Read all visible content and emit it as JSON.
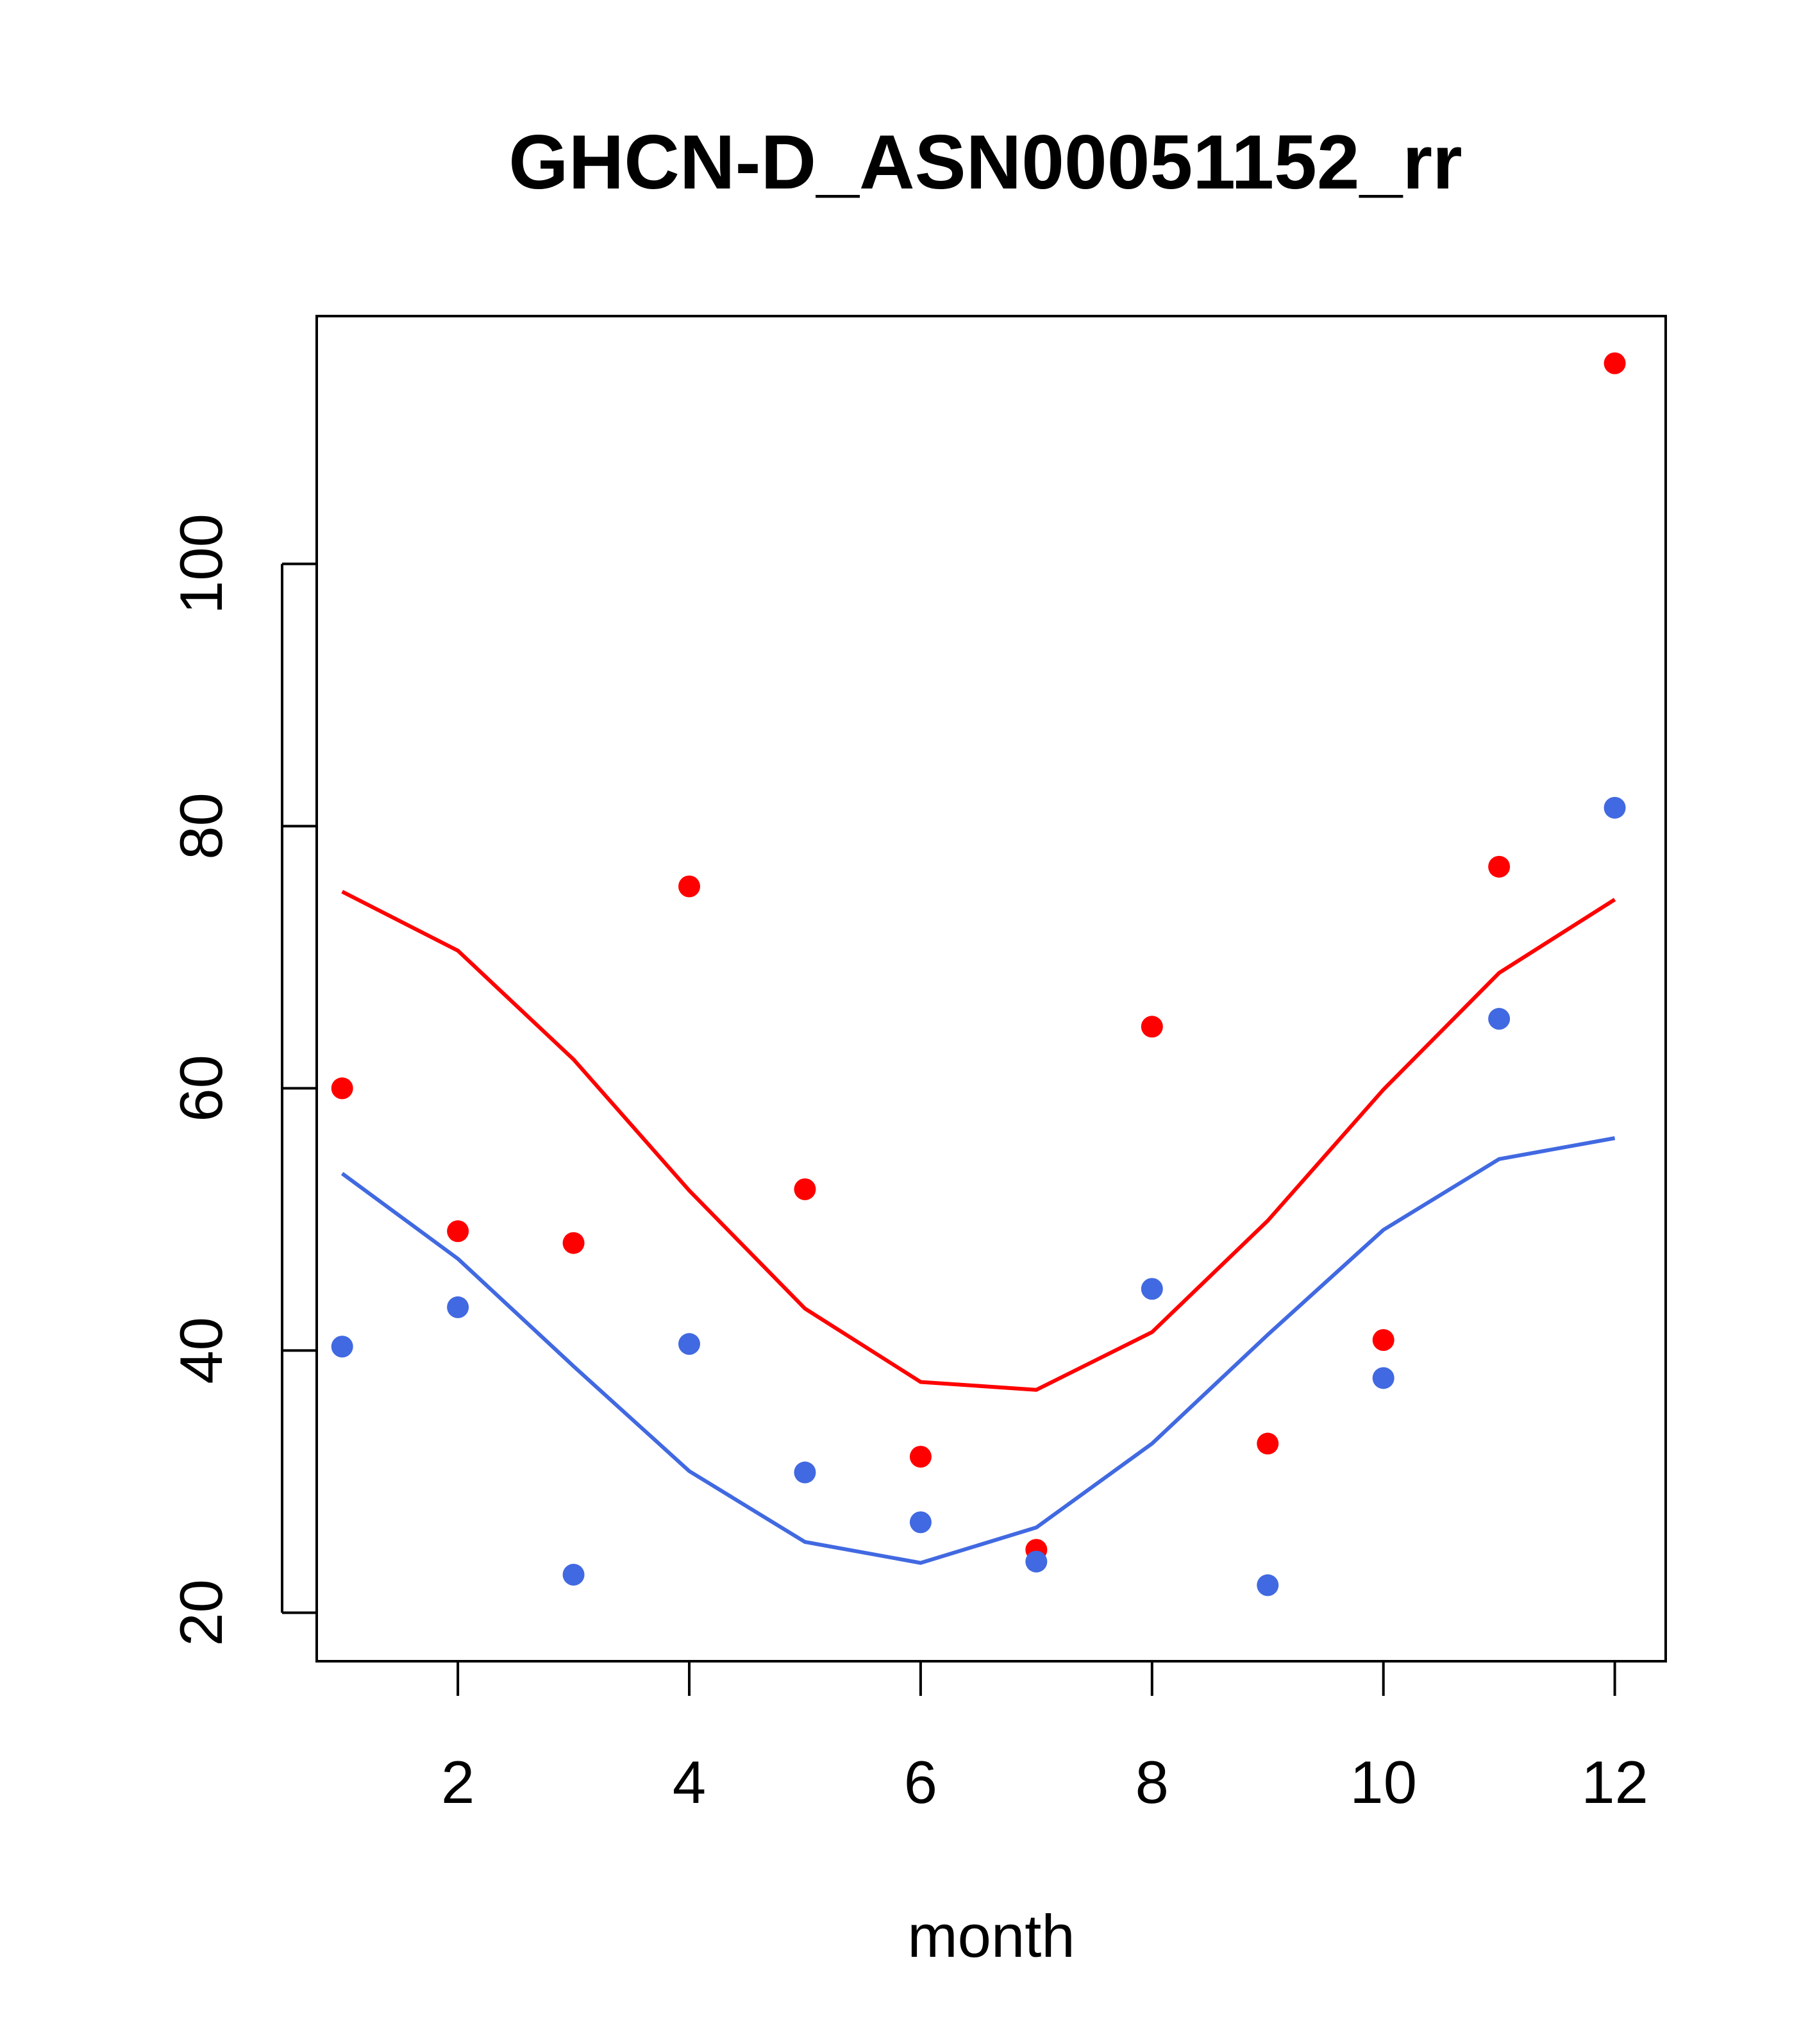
{
  "chart_data": {
    "type": "line",
    "title": "GHCN-D_ASN00051152_rr",
    "xlabel": "month",
    "ylabel": "",
    "xlim": [
      0.78,
      12.44
    ],
    "ylim": [
      16.3,
      118.9
    ],
    "x_ticks": [
      2,
      4,
      6,
      8,
      10,
      12
    ],
    "y_ticks": [
      20,
      40,
      60,
      80,
      100
    ],
    "x": [
      1,
      2,
      3,
      4,
      5,
      6,
      7,
      8,
      9,
      10,
      11,
      12
    ],
    "series": [
      {
        "color": "#ff0000",
        "kind": "points",
        "values": [
          60.0,
          49.1,
          48.2,
          75.4,
          52.3,
          31.9,
          24.8,
          64.7,
          32.9,
          40.8,
          76.9,
          115.3
        ]
      },
      {
        "color": "#4169e1",
        "kind": "points",
        "values": [
          40.3,
          43.3,
          22.9,
          40.5,
          30.7,
          26.9,
          23.9,
          44.7,
          22.1,
          37.9,
          65.3,
          81.4
        ]
      },
      {
        "color": "#ff0000",
        "kind": "line",
        "values": [
          75.0,
          70.5,
          62.2,
          52.2,
          43.2,
          37.6,
          37.0,
          41.4,
          49.9,
          59.9,
          68.8,
          74.4
        ]
      },
      {
        "color": "#4169e1",
        "kind": "line",
        "values": [
          53.5,
          47.0,
          38.8,
          30.8,
          25.4,
          23.8,
          26.5,
          32.9,
          41.2,
          49.2,
          54.6,
          56.2
        ]
      }
    ]
  }
}
